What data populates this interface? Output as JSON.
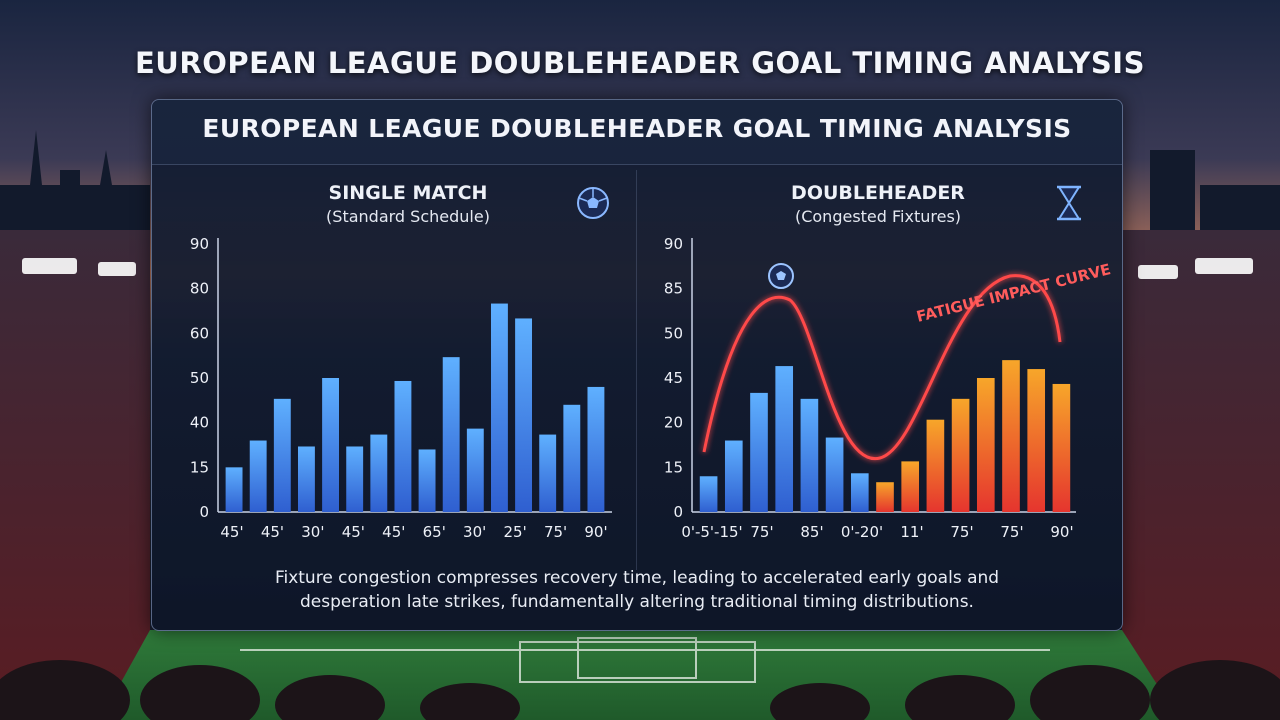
{
  "page": {
    "title": "EUROPEAN LEAGUE DOUBLEHEADER GOAL TIMING ANALYSIS",
    "panel_title": "EUROPEAN LEAGUE DOUBLEHEADER GOAL TIMING ANALYSIS",
    "caption_line1": "Fixture congestion compresses recovery time, leading to accelerated early goals and",
    "caption_line2": "desperation late strikes, fundamentally altering traditional timing distributions."
  },
  "icons": {
    "single": "soccer-ball-icon",
    "double": "hourglass-icon",
    "curve": "soccer-ball-icon"
  },
  "colors": {
    "blue_bar": "#3f8ef0",
    "red_bar": "#ea3b2e",
    "orange_bar": "#f5a02a",
    "curve": "#ff4a4a"
  },
  "chart_data": [
    {
      "type": "bar",
      "title": "SINGLE MATCH",
      "subtitle": "(Standard Schedule)",
      "y_ticks": [
        "90",
        "80",
        "60",
        "50",
        "40",
        "15",
        "0"
      ],
      "x_labels": [
        "45'",
        "45'",
        "30'",
        "45'",
        "45'",
        "65'",
        "30'",
        "25'",
        "75'",
        "90'"
      ],
      "values": [
        15,
        24,
        38,
        22,
        45,
        22,
        26,
        44,
        21,
        52,
        28,
        70,
        65,
        26,
        36,
        42
      ],
      "grid": false
    },
    {
      "type": "bar",
      "title": "DOUBLEHEADER",
      "subtitle": "(Congested Fixtures)",
      "y_ticks": [
        "90",
        "85",
        "50",
        "45",
        "20",
        "15",
        "0"
      ],
      "x_labels": [
        "0'-5'-15'",
        "75'",
        "85'",
        "0'-20'",
        "11'",
        "75'",
        "75'",
        "90'"
      ],
      "values": [
        12,
        24,
        40,
        49,
        38,
        25,
        13,
        10,
        17,
        31,
        38,
        45,
        51,
        48,
        43
      ],
      "annotation": "FATIGUE IMPACT CURVE",
      "grid": false
    }
  ]
}
